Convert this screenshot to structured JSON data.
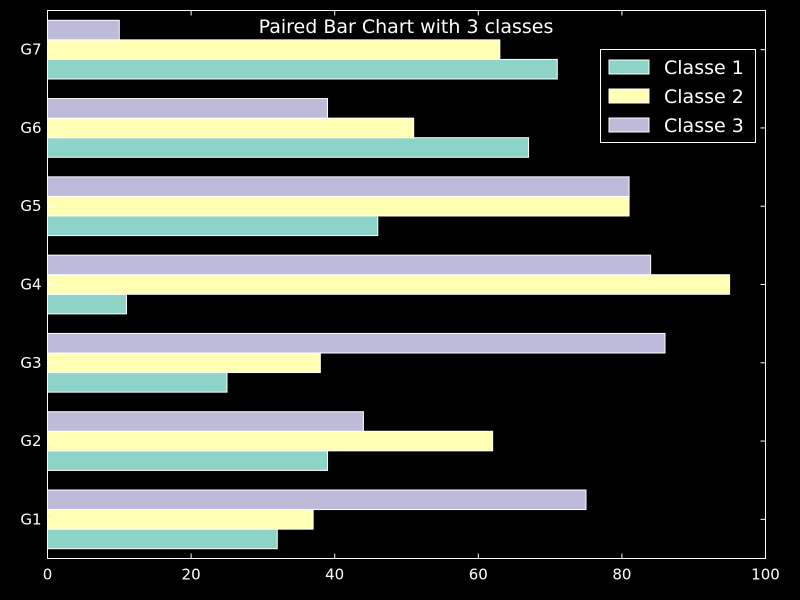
{
  "chart_data": {
    "type": "bar",
    "orientation": "horizontal",
    "title": "Paired Bar Chart with 3 classes",
    "xlabel": "",
    "ylabel": "",
    "categories": [
      "G1",
      "G2",
      "G3",
      "G4",
      "G5",
      "G6",
      "G7"
    ],
    "xlim": [
      0,
      100
    ],
    "xticks": [
      "0",
      "20",
      "40",
      "60",
      "80",
      "100"
    ],
    "grid": false,
    "legend_position": "top-right",
    "series": [
      {
        "name": "Classe 1",
        "color": "#8dd3c7",
        "values": [
          32,
          39,
          25,
          11,
          46,
          67,
          71
        ]
      },
      {
        "name": "Classe 2",
        "color": "#ffffb3",
        "values": [
          37,
          62,
          38,
          95,
          81,
          51,
          63
        ]
      },
      {
        "name": "Classe 3",
        "color": "#bebada",
        "values": [
          75,
          44,
          86,
          84,
          81,
          39,
          10
        ]
      }
    ]
  }
}
